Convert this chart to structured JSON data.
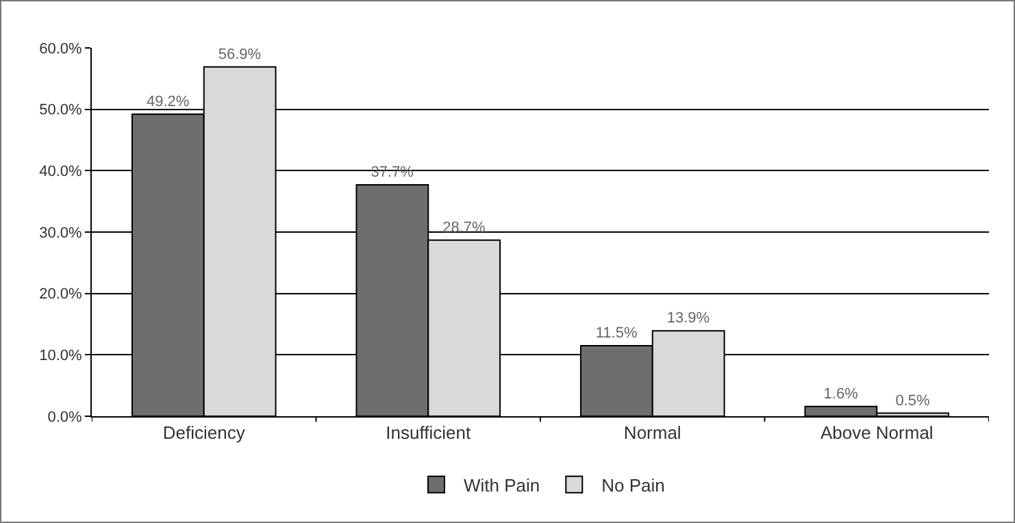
{
  "chart_data": {
    "type": "bar",
    "categories": [
      "Deficiency",
      "Insufficient",
      "Normal",
      "Above Normal"
    ],
    "series": [
      {
        "name": "With Pain",
        "color": "#6e6e6e",
        "values": [
          49.2,
          37.7,
          11.5,
          1.6
        ],
        "value_labels": [
          "49.2%",
          "37.7%",
          "11.5%",
          "1.6%"
        ]
      },
      {
        "name": "No Pain",
        "color": "#d9d9d9",
        "values": [
          56.9,
          28.7,
          13.9,
          0.5
        ],
        "value_labels": [
          "56.9%",
          "28.7%",
          "13.9%",
          "0.5%"
        ]
      }
    ],
    "ylim": [
      0,
      60
    ],
    "yticks": [
      {
        "value": 0,
        "label": "0.0%"
      },
      {
        "value": 10,
        "label": "10.0%"
      },
      {
        "value": 20,
        "label": "20.0%"
      },
      {
        "value": 30,
        "label": "30.0%"
      },
      {
        "value": 40,
        "label": "40.0%"
      },
      {
        "value": 50,
        "label": "50.0%"
      },
      {
        "value": 60,
        "label": "60.0%"
      }
    ],
    "grid": "y",
    "legend": "bottom"
  }
}
